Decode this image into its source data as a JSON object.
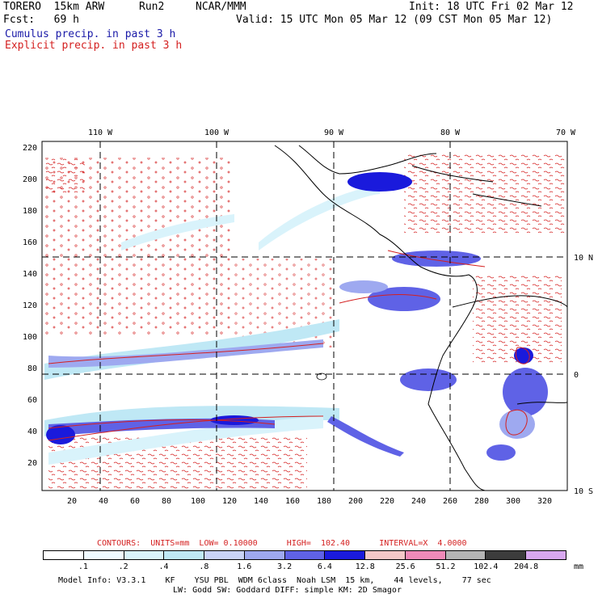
{
  "header": {
    "model": "TORERO  15km ARW",
    "run": "Run2",
    "org": "NCAR/MMM",
    "init": "Init: 18 UTC Fri 02 Mar 12",
    "fcst": "Fcst:   69 h",
    "valid": "Valid: 15 UTC Mon 05 Mar 12 (09 CST Mon 05 Mar 12)",
    "legend_cumulus": "Cumulus precip. in past 3 h",
    "legend_explicit": "Explicit precip. in past 3 h"
  },
  "axes": {
    "top_lon": [
      "110 W",
      "100 W",
      "90 W",
      "80 W",
      "70 W"
    ],
    "right_lat": [
      "10 N",
      "0",
      "10 S"
    ],
    "left_y": [
      "220",
      "200",
      "180",
      "160",
      "140",
      "120",
      "100",
      "80",
      "60",
      "40",
      "20"
    ],
    "bottom_x": [
      "20",
      "40",
      "60",
      "80",
      "100",
      "120",
      "140",
      "160",
      "180",
      "200",
      "220",
      "240",
      "260",
      "280",
      "300",
      "320"
    ]
  },
  "contours": {
    "text": "CONTOURS:  UNITS=mm  LOW= 0.10000      HIGH=  102.40      INTERVAL=X  4.0000"
  },
  "colorbar": {
    "labels": [
      ".1",
      ".2",
      ".4",
      ".8",
      "1.6",
      "3.2",
      "6.4",
      "12.8",
      "25.6",
      "51.2",
      "102.4",
      "204.8"
    ],
    "unit": "mm",
    "colors": [
      "#ffffff",
      "#f0faff",
      "#d9f3fb",
      "#bfe8f5",
      "#c9d3f7",
      "#9ea9f0",
      "#5f62e6",
      "#1a1adc",
      "#f5c8c8",
      "#f08ab8",
      "#b5b5b5",
      "#3c3c3c",
      "#d8a8f0"
    ]
  },
  "footer": {
    "line1": "Model Info: V3.3.1    KF    YSU PBL  WDM 6class  Noah LSM  15 km,    44 levels,    77 sec",
    "line2": "LW: Godd SW: Goddard DIFF: simple KM: 2D Smagor"
  }
}
